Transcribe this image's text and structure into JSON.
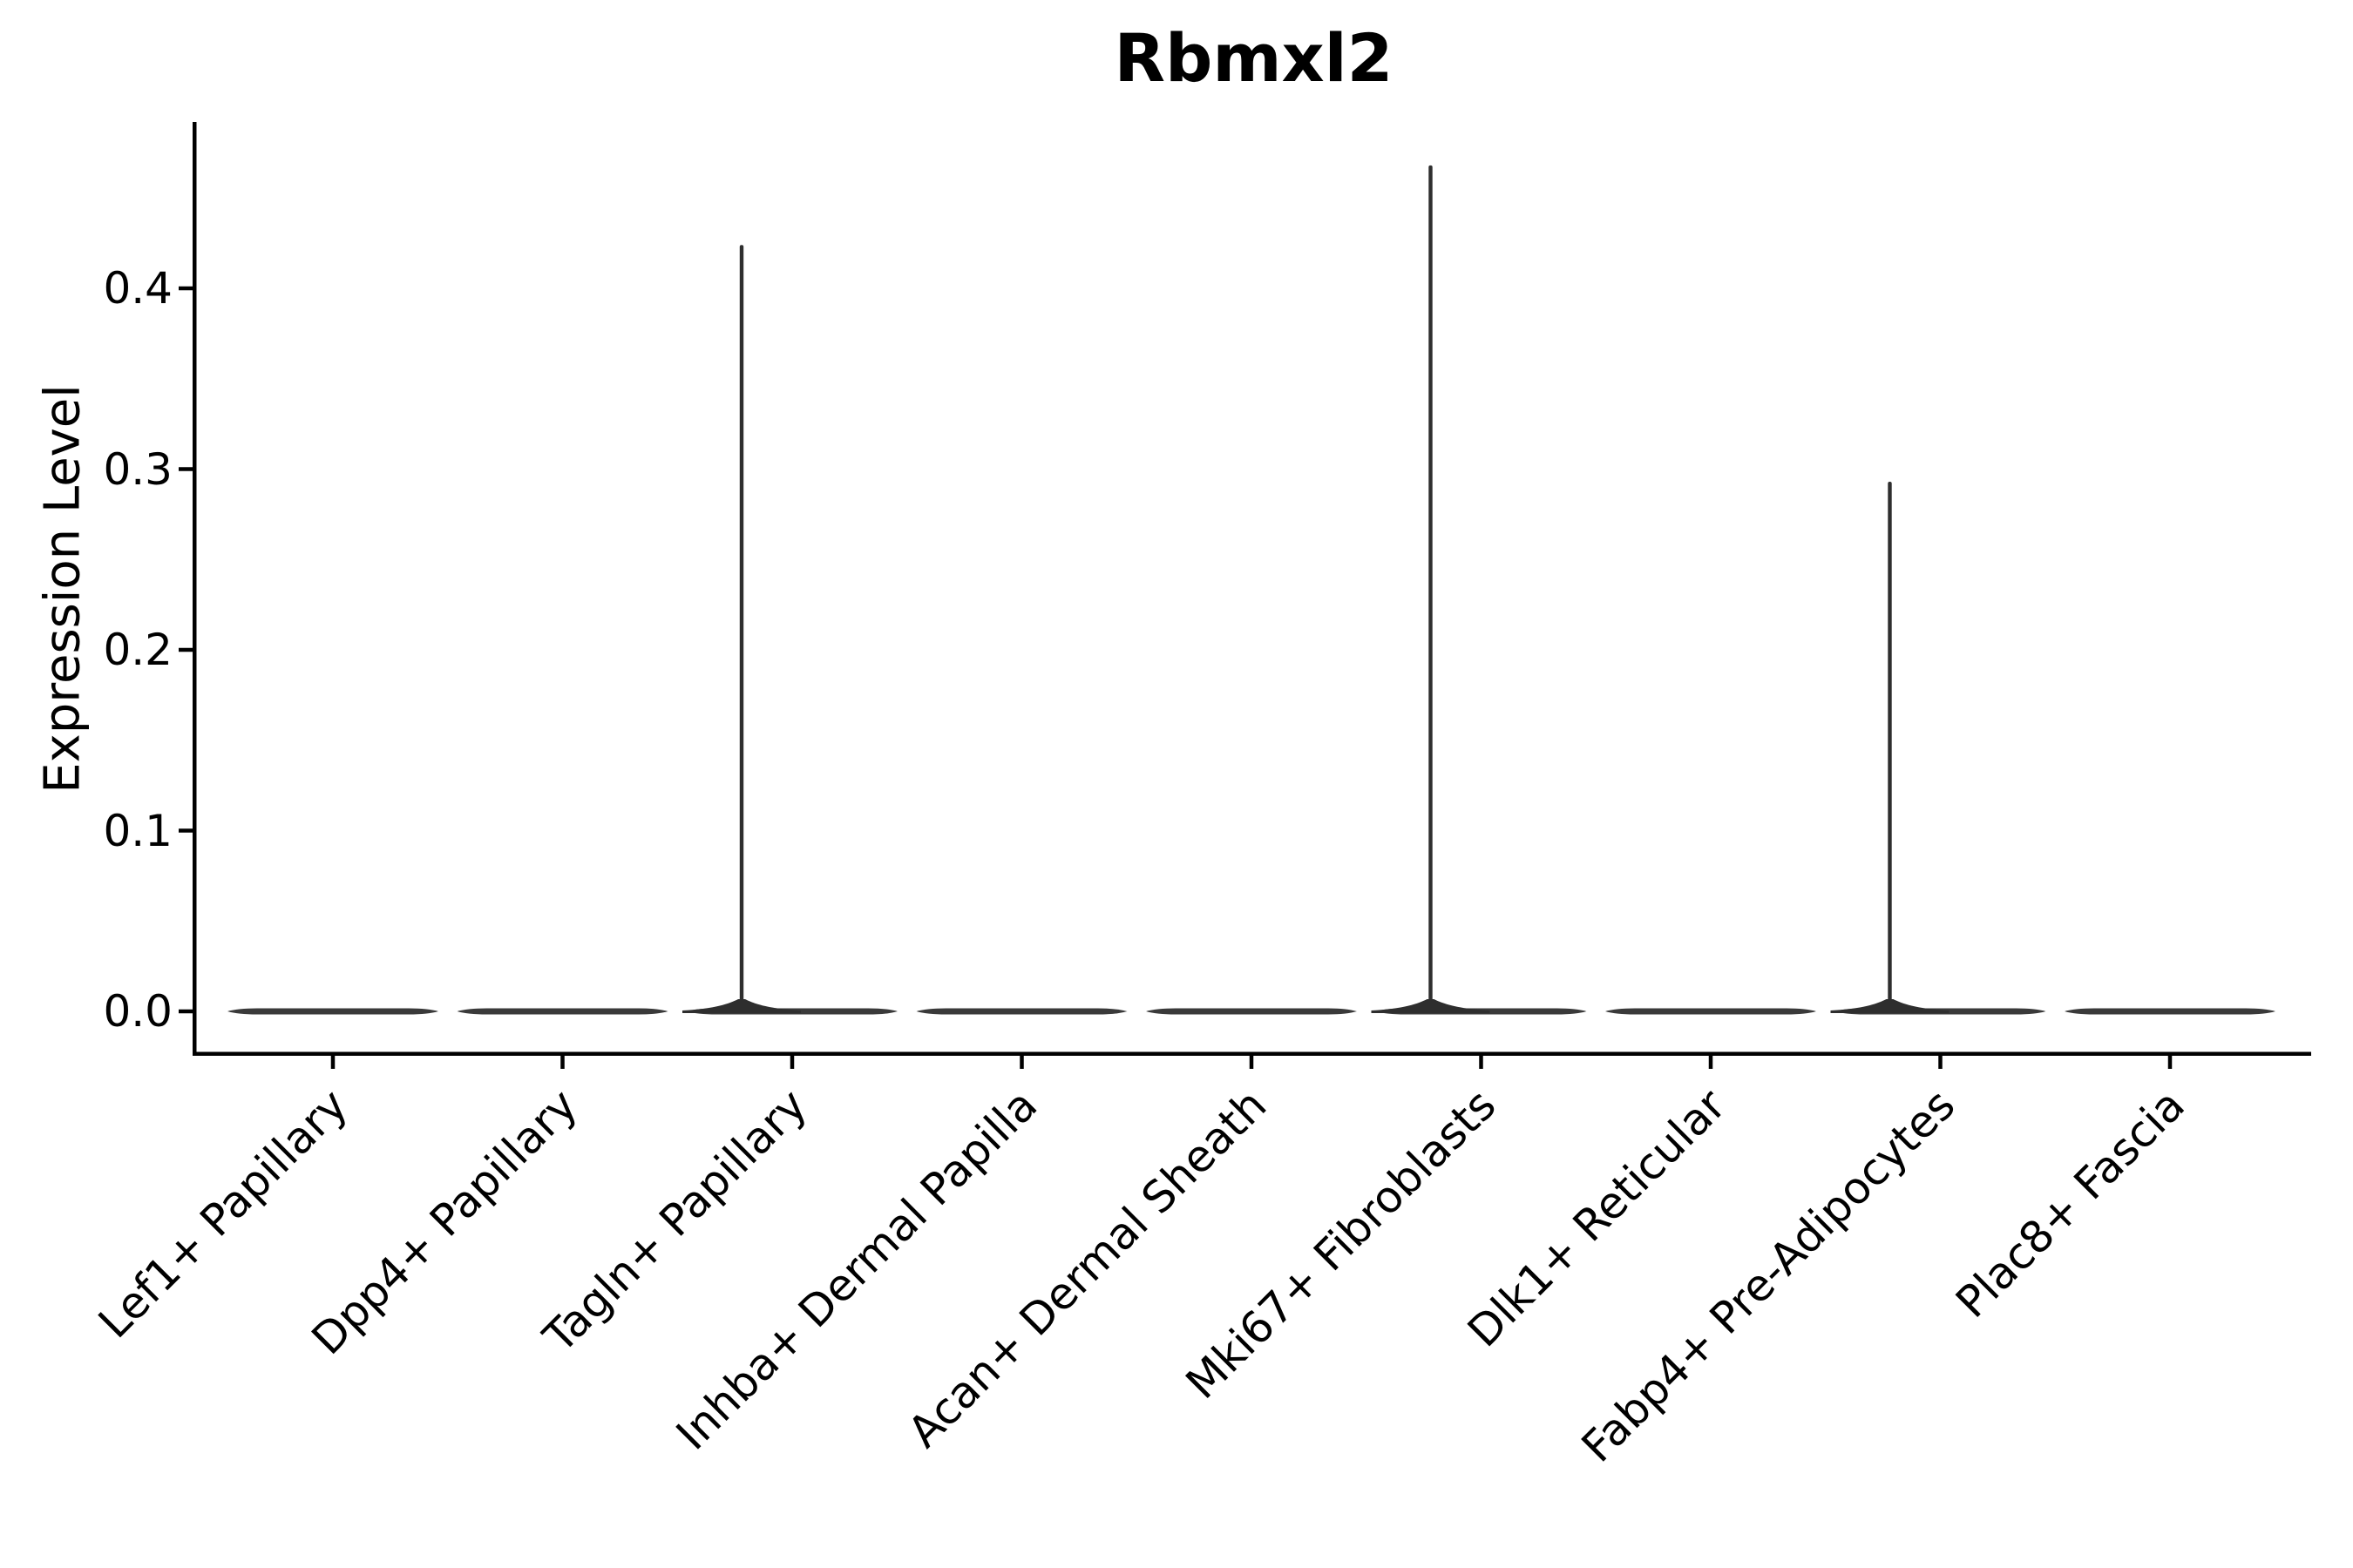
{
  "colors": {
    "background": "#ffffff",
    "axis": "#000000",
    "text": "#000000",
    "violin_body": "#3a3a3a",
    "violin_spike": "#2e2e2e"
  },
  "chart_data": {
    "type": "violin",
    "title": "Rbmxl2",
    "ylabel": "Expression Level",
    "xlabel": "",
    "grid": false,
    "legend": "none",
    "ylim": [
      -0.023,
      0.491
    ],
    "ytick_values": [
      0.0,
      0.1,
      0.2,
      0.3,
      0.4
    ],
    "ytick_labels": [
      "0.0",
      "0.1",
      "0.2",
      "0.3",
      "0.4"
    ],
    "categories": [
      "Lef1+ Papillary",
      "Dpp4+ Papillary",
      "Tagln+ Papillary",
      "Inhba+ Dermal Papilla",
      "Acan+ Dermal Sheath",
      "Mki67+ Fibroblasts",
      "Dlk1+ Reticular",
      "Fabp4+ Pre-Adipocytes",
      "Plac8+ Fascia"
    ],
    "violins": [
      {
        "category": "Lef1+ Papillary",
        "baseline_value": 0.0,
        "max_value": 0.0,
        "spike": false
      },
      {
        "category": "Dpp4+ Papillary",
        "baseline_value": 0.0,
        "max_value": 0.0,
        "spike": false
      },
      {
        "category": "Tagln+ Papillary",
        "baseline_value": 0.0,
        "max_value": 0.424,
        "spike": true
      },
      {
        "category": "Inhba+ Dermal Papilla",
        "baseline_value": 0.0,
        "max_value": 0.0,
        "spike": false
      },
      {
        "category": "Acan+ Dermal Sheath",
        "baseline_value": 0.0,
        "max_value": 0.0,
        "spike": false
      },
      {
        "category": "Mki67+ Fibroblasts",
        "baseline_value": 0.0,
        "max_value": 0.468,
        "spike": true
      },
      {
        "category": "Dlk1+ Reticular",
        "baseline_value": 0.0,
        "max_value": 0.0,
        "spike": false
      },
      {
        "category": "Fabp4+ Pre-Adipocytes",
        "baseline_value": 0.0,
        "max_value": 0.293,
        "spike": true
      },
      {
        "category": "Plac8+ Fascia",
        "baseline_value": 0.0,
        "max_value": 0.0,
        "spike": false
      }
    ]
  }
}
